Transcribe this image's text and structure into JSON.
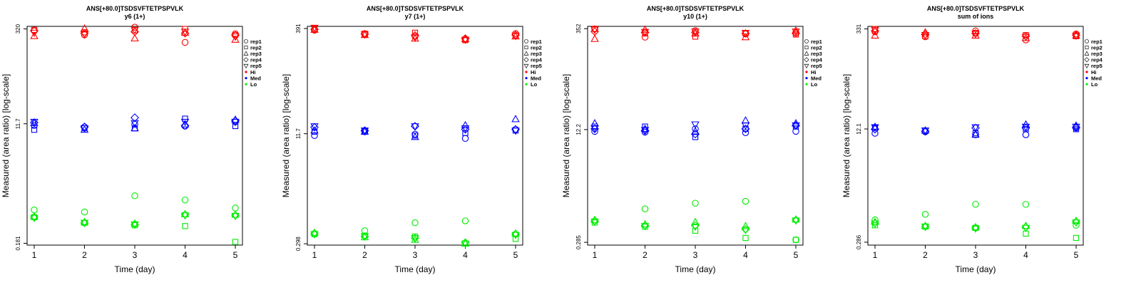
{
  "figure": {
    "peptide": "ANS[+80.0]TSDSVFTETPSPVLK",
    "legend": {
      "replicates": [
        {
          "label": "rep1",
          "symbol": "circle"
        },
        {
          "label": "rep2",
          "symbol": "square"
        },
        {
          "label": "rep3",
          "symbol": "triangle-up"
        },
        {
          "label": "rep4",
          "symbol": "diamond"
        },
        {
          "label": "rep5",
          "symbol": "triangle-down"
        }
      ],
      "levels": [
        {
          "label": "Hi",
          "color": "#ff0000"
        },
        {
          "label": "Med",
          "color": "#0000ff"
        },
        {
          "label": "Lo",
          "color": "#00ee00"
        }
      ]
    }
  },
  "chart_data": [
    {
      "type": "scatter",
      "title": "ANS[+80.0]TSDSVFTETPSPVLK",
      "subtitle": "y6 (1+)",
      "xlabel": "Time (day)",
      "ylabel": "Measured (area ratio) [log-scale]",
      "x_ticks": [
        "1",
        "2",
        "3",
        "4",
        "5"
      ],
      "y_ticks": [
        {
          "value": 320,
          "label": "320"
        },
        {
          "value": 11.7,
          "label": "11.7"
        },
        {
          "value": 0.181,
          "label": "0.181"
        }
      ],
      "ylim": [
        0.17,
        350
      ],
      "y_scale": "log",
      "series": [
        {
          "name": "Hi",
          "color": "#ff0000",
          "values": {
            "rep1": [
              300,
              260,
              340,
              200,
              270
            ],
            "rep2": [
              310,
              285,
              305,
              320,
              260
            ],
            "rep3": [
              250,
              325,
              230,
              280,
              220
            ],
            "rep4": [
              300,
              275,
              290,
              275,
              255
            ],
            "rep5": [
              280,
              265,
              310,
              290,
              245
            ]
          }
        },
        {
          "name": "Med",
          "color": "#0000ff",
          "values": {
            "rep1": [
              11,
              10.5,
              11.5,
              10.8,
              12.5
            ],
            "rep2": [
              9.5,
              10,
              10,
              14,
              10.8
            ],
            "rep3": [
              12,
              9.5,
              10,
              11.5,
              13.5
            ],
            "rep4": [
              12.2,
              10.5,
              14.5,
              11,
              13
            ],
            "rep5": [
              12.5,
              10,
              12,
              12.5,
              12.5
            ]
          }
        },
        {
          "name": "Lo",
          "color": "#00ee00",
          "values": {
            "rep1": [
              0.58,
              0.54,
              0.95,
              0.82,
              0.62
            ],
            "rep2": [
              0.45,
              0.37,
              0.34,
              0.33,
              0.19
            ],
            "rep3": [
              0.46,
              0.38,
              0.36,
              0.5,
              0.49
            ],
            "rep4": [
              0.45,
              0.37,
              0.35,
              0.49,
              0.48
            ],
            "rep5": [
              0.44,
              0.37,
              0.35,
              0.48,
              0.47
            ]
          }
        }
      ]
    },
    {
      "type": "scatter",
      "title": "ANS[+80.0]TSDSVFTETPSPVLK",
      "subtitle": "y7 (1+)",
      "xlabel": "Time (day)",
      "ylabel": "Measured (area ratio) [log-scale]",
      "x_ticks": [
        "1",
        "2",
        "3",
        "4",
        "5"
      ],
      "y_ticks": [
        {
          "value": 391,
          "label": "391"
        },
        {
          "value": 11.7,
          "label": "11.7"
        },
        {
          "value": 0.298,
          "label": "0.298"
        }
      ],
      "ylim": [
        0.285,
        420
      ],
      "y_scale": "log",
      "series": [
        {
          "name": "Hi",
          "color": "#ff0000",
          "values": {
            "rep1": [
              370,
              320,
              300,
              270,
              330
            ],
            "rep2": [
              390,
              330,
              340,
              265,
              310
            ],
            "rep3": [
              375,
              315,
              280,
              275,
              300
            ],
            "rep4": [
              380,
              325,
              310,
              280,
              315
            ],
            "rep5": [
              400,
              320,
              290,
              270,
              305
            ]
          }
        },
        {
          "name": "Med",
          "color": "#0000ff",
          "values": {
            "rep1": [
              11,
              12.5,
              11.5,
              10,
              13.5
            ],
            "rep2": [
              12.5,
              13,
              11,
              12,
              13
            ],
            "rep3": [
              13,
              12.5,
              10.5,
              15.5,
              19
            ],
            "rep4": [
              14.5,
              13,
              15,
              13.5,
              13.5
            ],
            "rep5": [
              15,
              13,
              15,
              14,
              13
            ]
          }
        },
        {
          "name": "Lo",
          "color": "#00ee00",
          "values": {
            "rep1": [
              0.42,
              0.46,
              0.6,
              0.64,
              0.41
            ],
            "rep2": [
              0.41,
              0.39,
              0.38,
              0.3,
              0.35
            ],
            "rep3": [
              0.43,
              0.37,
              0.34,
              0.3,
              0.42
            ],
            "rep4": [
              0.42,
              0.38,
              0.36,
              0.31,
              0.41
            ],
            "rep5": [
              0.41,
              0.38,
              0.36,
              0.3,
              0.4
            ]
          }
        }
      ]
    },
    {
      "type": "scatter",
      "title": "ANS[+80.0]TSDSVFTETPSPVLK",
      "subtitle": "y10 (1+)",
      "xlabel": "Time (day)",
      "ylabel": "Measured (area ratio) [log-scale]",
      "x_ticks": [
        "1",
        "2",
        "3",
        "4",
        "5"
      ],
      "y_ticks": [
        {
          "value": 352,
          "label": "352"
        },
        {
          "value": 12.2,
          "label": "12.2"
        },
        {
          "value": 0.285,
          "label": "0.285"
        }
      ],
      "ylim": [
        0.26,
        380
      ],
      "y_scale": "log",
      "series": [
        {
          "name": "Hi",
          "color": "#ff0000",
          "values": {
            "rep1": [
              350,
              265,
              330,
              295,
              310
            ],
            "rep2": [
              350,
              300,
              270,
              300,
              290
            ],
            "rep3": [
              250,
              340,
              300,
              265,
              330
            ],
            "rep4": [
              320,
              310,
              310,
              300,
              300
            ],
            "rep5": [
              340,
              315,
              320,
              305,
              320
            ]
          }
        },
        {
          "name": "Med",
          "color": "#0000ff",
          "values": {
            "rep1": [
              11.5,
              11.2,
              12.5,
              11,
              11.5
            ],
            "rep2": [
              13.5,
              13.5,
              9.5,
              12.5,
              13.5
            ],
            "rep3": [
              15,
              12.5,
              11.5,
              16.5,
              15
            ],
            "rep4": [
              12.5,
              11.8,
              10.5,
              12.5,
              14
            ],
            "rep5": [
              12.8,
              12,
              14.5,
              14,
              14
            ]
          }
        },
        {
          "name": "Lo",
          "color": "#00ee00",
          "values": {
            "rep1": [
              0.58,
              0.87,
              1.05,
              1.12,
              0.31
            ],
            "rep2": [
              0.55,
              0.48,
              0.42,
              0.33,
              0.31
            ],
            "rep3": [
              0.6,
              0.52,
              0.56,
              0.49,
              0.61
            ],
            "rep4": [
              0.58,
              0.5,
              0.5,
              0.44,
              0.6
            ],
            "rep5": [
              0.57,
              0.49,
              0.48,
              0.43,
              0.59
            ]
          }
        }
      ]
    },
    {
      "type": "scatter",
      "title": "ANS[+80.0]TSDSVFTETPSPVLK",
      "subtitle": "sum of ions",
      "xlabel": "Time (day)",
      "ylabel": "Measured (area ratio) [log-scale]",
      "x_ticks": [
        "1",
        "2",
        "3",
        "4",
        "5"
      ],
      "y_ticks": [
        {
          "value": 331,
          "label": "331"
        },
        {
          "value": 12.1,
          "label": "12.1"
        },
        {
          "value": 0.286,
          "label": "0.286"
        }
      ],
      "ylim": [
        0.26,
        360
      ],
      "y_scale": "log",
      "series": [
        {
          "name": "Hi",
          "color": "#ff0000",
          "values": {
            "rep1": [
              300,
              255,
              310,
              230,
              280
            ],
            "rep2": [
              330,
              260,
              290,
              270,
              260
            ],
            "rep3": [
              265,
              295,
              265,
              245,
              265
            ],
            "rep4": [
              310,
              275,
              285,
              260,
              270
            ],
            "rep5": [
              320,
              270,
              280,
              255,
              265
            ]
          }
        },
        {
          "name": "Med",
          "color": "#0000ff",
          "values": {
            "rep1": [
              10.5,
              11,
              10,
              10,
              12.5
            ],
            "rep2": [
              12.5,
              11.5,
              10.5,
              12,
              12
            ],
            "rep3": [
              13,
              11.5,
              10,
              14,
              13.5
            ],
            "rep4": [
              12,
              11.2,
              12.5,
              12.5,
              12.8
            ],
            "rep5": [
              12.8,
              11.5,
              12.8,
              13,
              13
            ]
          }
        },
        {
          "name": "Lo",
          "color": "#00ee00",
          "values": {
            "rep1": [
              0.6,
              0.72,
              1.0,
              1.0,
              0.5
            ],
            "rep2": [
              0.5,
              0.48,
              0.46,
              0.38,
              0.33
            ],
            "rep3": [
              0.56,
              0.49,
              0.47,
              0.49,
              0.58
            ],
            "rep4": [
              0.54,
              0.48,
              0.46,
              0.47,
              0.56
            ],
            "rep5": [
              0.53,
              0.48,
              0.45,
              0.46,
              0.55
            ]
          }
        }
      ]
    }
  ]
}
